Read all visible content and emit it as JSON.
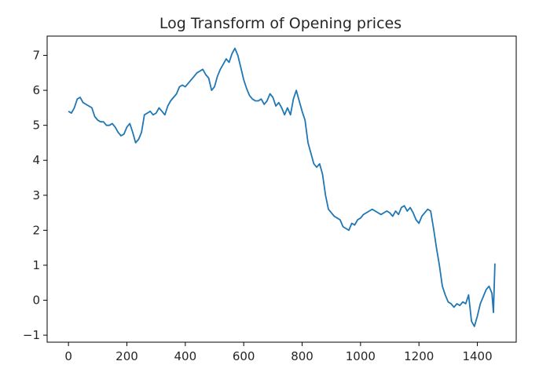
{
  "chart_data": {
    "type": "line",
    "title": "Log Transform of Opening prices",
    "xlabel": "",
    "ylabel": "",
    "xlim": [
      -73,
      1533
    ],
    "ylim": [
      -1.2,
      7.55
    ],
    "grid": false,
    "x_ticks": [
      0,
      200,
      400,
      600,
      800,
      1000,
      1200,
      1400
    ],
    "y_ticks": [
      -1,
      0,
      1,
      2,
      3,
      4,
      5,
      6,
      7
    ],
    "line_color": "#1f77b4",
    "series": [
      {
        "x": [
          0,
          10,
          20,
          30,
          40,
          50,
          60,
          70,
          80,
          90,
          100,
          110,
          120,
          130,
          140,
          150,
          160,
          170,
          180,
          190,
          200,
          210,
          220,
          230,
          240,
          250,
          260,
          270,
          280,
          290,
          300,
          310,
          320,
          330,
          340,
          350,
          360,
          370,
          380,
          390,
          400,
          410,
          420,
          430,
          440,
          450,
          460,
          470,
          480,
          490,
          500,
          510,
          520,
          530,
          540,
          550,
          560,
          570,
          580,
          590,
          600,
          610,
          620,
          630,
          640,
          650,
          660,
          670,
          680,
          690,
          700,
          710,
          720,
          730,
          740,
          750,
          760,
          770,
          780,
          790,
          800,
          810,
          820,
          830,
          840,
          850,
          860,
          870,
          880,
          890,
          900,
          910,
          920,
          930,
          940,
          950,
          960,
          970,
          980,
          990,
          1000,
          1010,
          1020,
          1030,
          1040,
          1050,
          1060,
          1070,
          1080,
          1090,
          1100,
          1110,
          1120,
          1130,
          1140,
          1150,
          1160,
          1170,
          1180,
          1190,
          1200,
          1210,
          1220,
          1230,
          1240,
          1250,
          1260,
          1270,
          1280,
          1290,
          1300,
          1310,
          1320,
          1330,
          1340,
          1350,
          1360,
          1370,
          1380,
          1390,
          1400,
          1410,
          1420,
          1430,
          1440,
          1450,
          1455,
          1460
        ],
        "y": [
          5.4,
          5.35,
          5.5,
          5.75,
          5.8,
          5.65,
          5.6,
          5.55,
          5.5,
          5.25,
          5.15,
          5.1,
          5.1,
          5.0,
          5.0,
          5.05,
          4.95,
          4.8,
          4.7,
          4.75,
          4.95,
          5.05,
          4.8,
          4.5,
          4.6,
          4.8,
          5.3,
          5.35,
          5.4,
          5.3,
          5.35,
          5.5,
          5.4,
          5.3,
          5.55,
          5.7,
          5.8,
          5.9,
          6.1,
          6.15,
          6.1,
          6.2,
          6.3,
          6.4,
          6.5,
          6.55,
          6.6,
          6.45,
          6.35,
          6.0,
          6.1,
          6.4,
          6.6,
          6.75,
          6.9,
          6.8,
          7.05,
          7.2,
          7.0,
          6.65,
          6.3,
          6.05,
          5.85,
          5.75,
          5.7,
          5.7,
          5.75,
          5.6,
          5.7,
          5.9,
          5.8,
          5.55,
          5.65,
          5.5,
          5.3,
          5.5,
          5.3,
          5.75,
          6.0,
          5.7,
          5.4,
          5.15,
          4.5,
          4.2,
          3.9,
          3.8,
          3.9,
          3.6,
          3.0,
          2.6,
          2.5,
          2.4,
          2.35,
          2.3,
          2.1,
          2.05,
          2.0,
          2.2,
          2.15,
          2.3,
          2.35,
          2.45,
          2.5,
          2.55,
          2.6,
          2.55,
          2.5,
          2.45,
          2.5,
          2.55,
          2.5,
          2.4,
          2.55,
          2.45,
          2.65,
          2.7,
          2.55,
          2.65,
          2.5,
          2.3,
          2.2,
          2.4,
          2.5,
          2.6,
          2.55,
          2.05,
          1.5,
          1.0,
          0.4,
          0.15,
          -0.05,
          -0.1,
          -0.2,
          -0.1,
          -0.15,
          -0.05,
          -0.1,
          0.15,
          -0.6,
          -0.75,
          -0.45,
          -0.1,
          0.1,
          0.3,
          0.4,
          0.2,
          -0.35,
          1.05
        ]
      }
    ]
  }
}
